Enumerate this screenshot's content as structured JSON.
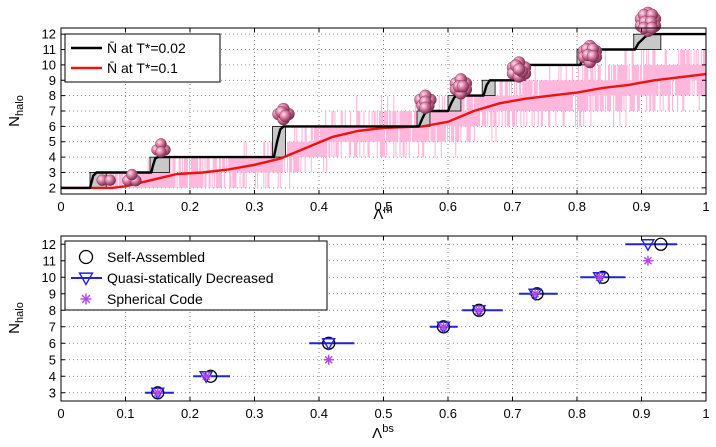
{
  "chart_data": [
    {
      "type": "line",
      "panel": "top",
      "xlabel": "Λ",
      "xlabel_sup": "m",
      "ylabel": "N",
      "ylabel_sub": "halo",
      "xlim": [
        0,
        1
      ],
      "ylim": [
        1.6,
        12.4
      ],
      "xticks": [
        "0",
        "0.1",
        "0.2",
        "0.3",
        "0.4",
        "0.5",
        "0.6",
        "0.7",
        "0.8",
        "0.9",
        "1"
      ],
      "yticks": [
        "2",
        "3",
        "4",
        "5",
        "6",
        "7",
        "8",
        "9",
        "10",
        "11",
        "12"
      ],
      "grid": true,
      "legend_position": "top-left",
      "series": [
        {
          "name": "N̄ at T*=0.02",
          "color": "#000000",
          "x": [
            0.0,
            0.045,
            0.05,
            0.055,
            0.085,
            0.14,
            0.143,
            0.146,
            0.15,
            0.17,
            0.33,
            0.335,
            0.34,
            0.345,
            0.555,
            0.56,
            0.565,
            0.57,
            0.6,
            0.605,
            0.61,
            0.615,
            0.655,
            0.66,
            0.665,
            0.705,
            0.71,
            0.715,
            0.805,
            0.81,
            0.815,
            0.825,
            0.89,
            0.895,
            0.9,
            0.905,
            0.91,
            0.915,
            1.0
          ],
          "y": [
            2,
            2,
            2.8,
            3,
            3,
            3,
            3.5,
            3.9,
            4,
            4,
            4,
            5,
            5.8,
            6,
            6,
            6.5,
            6.9,
            7,
            7,
            7.5,
            7.9,
            8,
            8,
            8.7,
            9,
            9,
            9.6,
            10,
            10,
            10.5,
            10.9,
            11,
            11,
            11.4,
            11.6,
            11.8,
            11.95,
            12,
            12
          ]
        },
        {
          "name": "N̄ at T*=0.1",
          "color": "#ee1111",
          "x": [
            0.0,
            0.05,
            0.08,
            0.1,
            0.12,
            0.15,
            0.18,
            0.22,
            0.26,
            0.3,
            0.34,
            0.38,
            0.42,
            0.46,
            0.5,
            0.56,
            0.6,
            0.64,
            0.68,
            0.72,
            0.76,
            0.8,
            0.84,
            0.88,
            0.92,
            0.96,
            1.0
          ],
          "y": [
            2,
            2,
            2,
            2.1,
            2.3,
            2.6,
            2.9,
            3.0,
            3.2,
            3.5,
            3.9,
            4.6,
            5.3,
            5.7,
            5.9,
            6.0,
            6.3,
            7.0,
            7.5,
            7.8,
            8.0,
            8.2,
            8.5,
            8.7,
            9.0,
            9.2,
            9.4
          ]
        }
      ],
      "shaded_transitions": [
        {
          "x0": 0.045,
          "x1": 0.07,
          "n0": 2,
          "n1": 3
        },
        {
          "x0": 0.138,
          "x1": 0.168,
          "n0": 3,
          "n1": 4
        },
        {
          "x0": 0.328,
          "x1": 0.348,
          "n0": 4,
          "n1": 6
        },
        {
          "x0": 0.552,
          "x1": 0.572,
          "n0": 6,
          "n1": 7
        },
        {
          "x0": 0.6,
          "x1": 0.62,
          "n0": 7,
          "n1": 8
        },
        {
          "x0": 0.653,
          "x1": 0.673,
          "n0": 8,
          "n1": 9
        },
        {
          "x0": 0.703,
          "x1": 0.72,
          "n0": 9,
          "n1": 10
        },
        {
          "x0": 0.8,
          "x1": 0.825,
          "n0": 10,
          "n1": 11
        },
        {
          "x0": 0.888,
          "x1": 0.93,
          "n0": 11,
          "n1": 12
        }
      ],
      "cluster_images": [
        {
          "x": 0.07,
          "y": 2.5,
          "n": 2
        },
        {
          "x": 0.11,
          "y": 2.6,
          "n": 3
        },
        {
          "x": 0.155,
          "y": 4.6,
          "n": 4
        },
        {
          "x": 0.345,
          "y": 6.8,
          "n": 6
        },
        {
          "x": 0.565,
          "y": 7.6,
          "n": 7
        },
        {
          "x": 0.62,
          "y": 8.6,
          "n": 8
        },
        {
          "x": 0.71,
          "y": 9.7,
          "n": 9
        },
        {
          "x": 0.82,
          "y": 10.7,
          "n": 10
        },
        {
          "x": 0.91,
          "y": 12.8,
          "n": 12
        }
      ],
      "color_noise": "#ffb8dc"
    },
    {
      "type": "scatter",
      "panel": "bottom",
      "xlabel": "Λ",
      "xlabel_sup": "bs",
      "ylabel": "N",
      "ylabel_sub": "halo",
      "xlim": [
        0,
        1
      ],
      "ylim": [
        2.5,
        12.5
      ],
      "xticks": [
        "0",
        "0.1",
        "0.2",
        "0.3",
        "0.4",
        "0.5",
        "0.6",
        "0.7",
        "0.8",
        "0.9",
        "1"
      ],
      "yticks": [
        "3",
        "4",
        "5",
        "6",
        "7",
        "8",
        "9",
        "10",
        "11",
        "12"
      ],
      "grid": true,
      "legend_position": "top-left",
      "series": [
        {
          "name": "Self-Assembled",
          "marker": "circle",
          "color": "#000000",
          "x": [
            0.15,
            0.232,
            0.415,
            0.593,
            0.648,
            0.738,
            0.84,
            0.93
          ],
          "y": [
            3,
            4,
            6,
            7,
            8,
            9,
            10,
            12
          ]
        },
        {
          "name": "Quasi-statically Decreased",
          "marker": "triangle-down",
          "color": "#2222dd",
          "x": [
            0.15,
            0.225,
            0.415,
            0.593,
            0.648,
            0.735,
            0.835,
            0.91
          ],
          "y": [
            3,
            4,
            6,
            7,
            8,
            9,
            10,
            12
          ],
          "xerr_low": [
            0.13,
            0.205,
            0.385,
            0.572,
            0.622,
            0.71,
            0.805,
            0.875
          ],
          "xerr_high": [
            0.175,
            0.262,
            0.455,
            0.615,
            0.685,
            0.77,
            0.875,
            0.955
          ]
        },
        {
          "name": "Spherical Code",
          "marker": "asterisk",
          "color": "#b544ee",
          "x": [
            0.15,
            0.225,
            0.415,
            0.593,
            0.648,
            0.735,
            0.835,
            0.91
          ],
          "y": [
            3,
            4,
            5,
            7,
            8,
            9,
            10,
            11
          ]
        }
      ]
    }
  ]
}
